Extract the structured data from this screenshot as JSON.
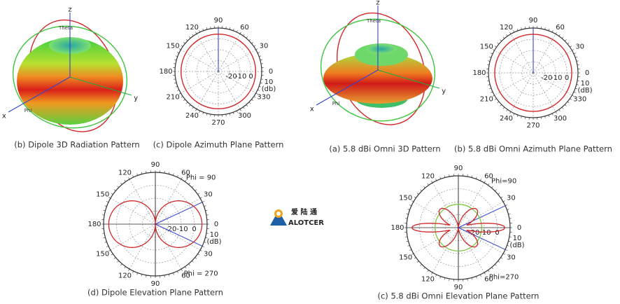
{
  "panels": [
    {
      "kind": "3d-dipole",
      "caption": "(b) Dipole 3D Radiation Pattern",
      "axes": [
        "z",
        "y",
        "x"
      ],
      "tags": [
        "Theta",
        "Phi"
      ]
    },
    {
      "kind": "azimuth",
      "caption": "(c) Dipole Azimuth Plane Pattern",
      "angle_labels": [
        "90",
        "60",
        "30",
        "0",
        "330",
        "300",
        "270",
        "240",
        "210",
        "180",
        "150",
        "120"
      ],
      "radial_labels": [
        "-20",
        "-10",
        "0",
        "10"
      ],
      "unit": "(db)"
    },
    {
      "kind": "3d-omni",
      "caption": "(a) 5.8 dBi Omni 3D Pattern",
      "axes": [
        "z",
        "y",
        "x"
      ],
      "tags": [
        "Theta",
        "Phi"
      ]
    },
    {
      "kind": "azimuth",
      "caption": "(b) 5.8 dBi Omni Azimuth Plane Pattern",
      "angle_labels": [
        "90",
        "60",
        "30",
        "0",
        "330",
        "300",
        "270",
        "240",
        "210",
        "180",
        "150",
        "120"
      ],
      "radial_labels": [
        "-20",
        "-10",
        "0",
        "10"
      ],
      "unit": "(dB)"
    },
    {
      "kind": "elevation-dipole",
      "caption": "(d) Dipole Elevation Plane Pattern",
      "angle_labels": [
        "90",
        "60",
        "30",
        "0",
        "30",
        "60",
        "90",
        "120",
        "150",
        "180",
        "150",
        "120"
      ],
      "radial_labels": [
        "-20",
        "-10",
        "0",
        "10"
      ],
      "unit": "(dB)",
      "phi_labels": [
        "Phi = 90",
        "Phi = 270"
      ]
    },
    {
      "kind": "elevation-omni",
      "caption": "(c) 5.8 dBi Omni Elevation Plane Pattern",
      "angle_labels": [
        "90",
        "60",
        "30",
        "0",
        "30",
        "60",
        "90",
        "120",
        "150",
        "180",
        "150",
        "120"
      ],
      "radial_labels": [
        "-20",
        "-10",
        "0",
        "10"
      ],
      "unit": "(dB)",
      "phi_labels": [
        "Phi=90",
        "Phi=270"
      ]
    }
  ],
  "logo": {
    "cn": "爱 陆 通",
    "en": "ALOTCER"
  }
}
